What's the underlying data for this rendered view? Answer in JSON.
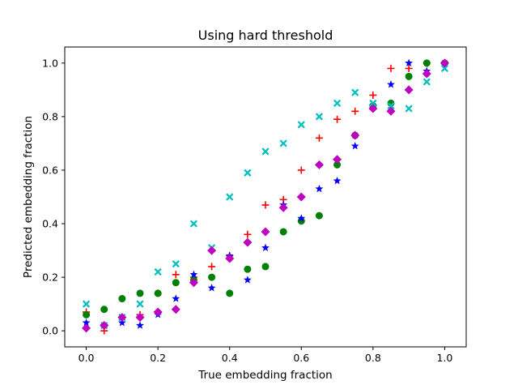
{
  "chart_data": {
    "type": "scatter",
    "title": "Using hard threshold",
    "xlabel": "True embedding fraction",
    "ylabel": "Predicted embedding fraction",
    "xlim": [
      -0.06,
      1.06
    ],
    "ylim": [
      -0.06,
      1.06
    ],
    "xticks": [
      0.0,
      0.2,
      0.4,
      0.6,
      0.8,
      1.0
    ],
    "yticks": [
      0.0,
      0.2,
      0.4,
      0.6,
      0.8,
      1.0
    ],
    "xtick_labels": [
      "0.0",
      "0.2",
      "0.4",
      "0.6",
      "0.8",
      "1.0"
    ],
    "ytick_labels": [
      "0.0",
      "0.2",
      "0.4",
      "0.6",
      "0.8",
      "1.0"
    ],
    "grid": false,
    "series": [
      {
        "marker": "plus",
        "color": "#ff0000",
        "x": [
          0.0,
          0.05,
          0.1,
          0.15,
          0.2,
          0.25,
          0.3,
          0.35,
          0.4,
          0.45,
          0.5,
          0.55,
          0.6,
          0.65,
          0.7,
          0.75,
          0.8,
          0.85,
          0.9,
          0.95,
          1.0
        ],
        "y": [
          0.07,
          0.0,
          0.05,
          0.06,
          0.14,
          0.21,
          0.2,
          0.24,
          0.28,
          0.36,
          0.47,
          0.49,
          0.6,
          0.72,
          0.79,
          0.82,
          0.88,
          0.98,
          0.98,
          1.0,
          1.0
        ]
      },
      {
        "marker": "circle",
        "color": "#008000",
        "x": [
          0.0,
          0.05,
          0.1,
          0.15,
          0.2,
          0.25,
          0.3,
          0.35,
          0.4,
          0.45,
          0.5,
          0.55,
          0.6,
          0.65,
          0.7,
          0.75,
          0.8,
          0.85,
          0.9,
          0.95,
          1.0
        ],
        "y": [
          0.06,
          0.08,
          0.12,
          0.14,
          0.14,
          0.18,
          0.19,
          0.2,
          0.14,
          0.23,
          0.24,
          0.37,
          0.41,
          0.43,
          0.62,
          0.73,
          0.84,
          0.85,
          0.95,
          1.0,
          1.0
        ]
      },
      {
        "marker": "star",
        "color": "#0000ff",
        "x": [
          0.0,
          0.05,
          0.1,
          0.15,
          0.2,
          0.25,
          0.3,
          0.35,
          0.4,
          0.45,
          0.5,
          0.55,
          0.6,
          0.65,
          0.7,
          0.75,
          0.8,
          0.85,
          0.9,
          0.95,
          1.0
        ],
        "y": [
          0.03,
          0.02,
          0.03,
          0.02,
          0.06,
          0.12,
          0.21,
          0.16,
          0.28,
          0.19,
          0.31,
          0.47,
          0.42,
          0.53,
          0.56,
          0.69,
          0.84,
          0.92,
          1.0,
          0.97,
          1.0
        ]
      },
      {
        "marker": "x",
        "color": "#00bfbf",
        "x": [
          0.0,
          0.05,
          0.1,
          0.15,
          0.2,
          0.25,
          0.3,
          0.35,
          0.4,
          0.45,
          0.5,
          0.55,
          0.6,
          0.65,
          0.7,
          0.75,
          0.8,
          0.85,
          0.9,
          0.95,
          1.0
        ],
        "y": [
          0.1,
          0.02,
          0.05,
          0.1,
          0.22,
          0.25,
          0.4,
          0.31,
          0.5,
          0.59,
          0.67,
          0.7,
          0.77,
          0.8,
          0.85,
          0.89,
          0.85,
          0.84,
          0.83,
          0.93,
          0.98
        ]
      },
      {
        "marker": "diamond",
        "color": "#bf00bf",
        "x": [
          0.0,
          0.05,
          0.1,
          0.15,
          0.2,
          0.25,
          0.3,
          0.35,
          0.4,
          0.45,
          0.5,
          0.55,
          0.6,
          0.65,
          0.7,
          0.75,
          0.8,
          0.85,
          0.9,
          0.95,
          1.0
        ],
        "y": [
          0.01,
          0.02,
          0.05,
          0.05,
          0.07,
          0.08,
          0.18,
          0.3,
          0.27,
          0.33,
          0.37,
          0.46,
          0.5,
          0.62,
          0.64,
          0.73,
          0.83,
          0.82,
          0.9,
          0.96,
          1.0
        ]
      }
    ]
  }
}
